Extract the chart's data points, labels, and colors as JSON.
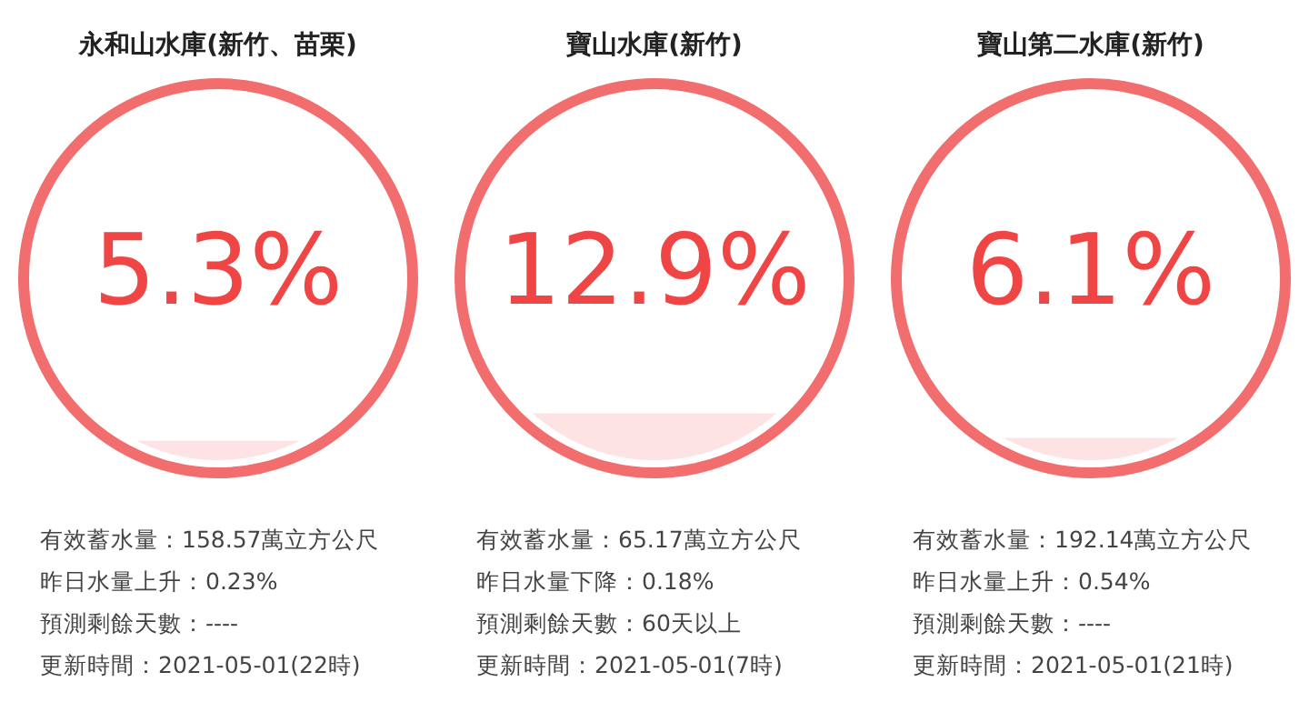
{
  "chart_data": [
    {
      "type": "other",
      "title": "永和山水庫(新竹、苗栗)",
      "values": [
        5.3
      ],
      "value_labels": [
        "5.3%"
      ],
      "color": "#f26d6d",
      "annotations": [
        "有效蓄水量：158.57萬立方公尺",
        "昨日水量上升：0.23%",
        "預測剩餘天數：----",
        "更新時間：2021-05-01(22時)"
      ]
    },
    {
      "type": "other",
      "title": "寶山水庫(新竹)",
      "values": [
        12.9
      ],
      "value_labels": [
        "12.9%"
      ],
      "color": "#f26d6d",
      "annotations": [
        "有效蓄水量：65.17萬立方公尺",
        "昨日水量下降：0.18%",
        "預測剩餘天數：60天以上",
        "更新時間：2021-05-01(7時)"
      ]
    },
    {
      "type": "other",
      "title": "寶山第二水庫(新竹)",
      "values": [
        6.1
      ],
      "value_labels": [
        "6.1%"
      ],
      "color": "#f26d6d",
      "annotations": [
        "有效蓄水量：192.14萬立方公尺",
        "昨日水量上升：0.54%",
        "預測剩餘天數：----",
        "更新時間：2021-05-01(21時)"
      ]
    }
  ]
}
